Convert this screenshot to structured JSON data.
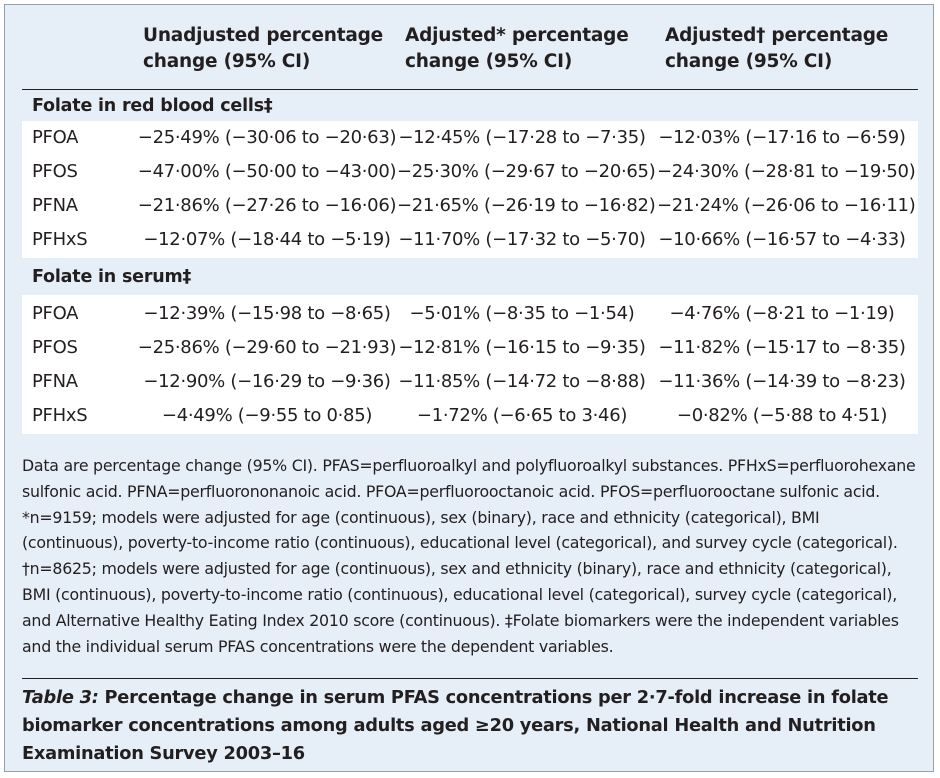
{
  "header": {
    "col1": "Unadjusted percentage\nchange (95% CI)",
    "col2": "Adjusted* percentage\nchange (95% CI)",
    "col3": "Adjusted† percentage\nchange (95% CI)"
  },
  "sections": [
    {
      "title": "Folate in red blood cells‡",
      "rows": [
        {
          "label": "PFOA",
          "unadjusted": "−25·49% (−30·06 to −20·63)",
          "adjusted1": "−12·45% (−17·28 to −7·35)",
          "adjusted2": "−12·03% (−17·16 to −6·59)"
        },
        {
          "label": "PFOS",
          "unadjusted": "−47·00% (−50·00 to −43·00)",
          "adjusted1": "−25·30% (−29·67 to −20·65)",
          "adjusted2": "−24·30% (−28·81 to −19·50)"
        },
        {
          "label": "PFNA",
          "unadjusted": "−21·86% (−27·26 to −16·06)",
          "adjusted1": "−21·65% (−26·19 to −16·82)",
          "adjusted2": "−21·24% (−26·06 to −16·11)"
        },
        {
          "label": "PFHxS",
          "unadjusted": "−12·07% (−18·44 to −5·19)",
          "adjusted1": "−11·70% (−17·32 to −5·70)",
          "adjusted2": "−10·66% (−16·57 to −4·33)"
        }
      ]
    },
    {
      "title": "Folate in serum‡",
      "rows": [
        {
          "label": "PFOA",
          "unadjusted": "−12·39% (−15·98 to −8·65)",
          "adjusted1": "−5·01% (−8·35 to −1·54)",
          "adjusted2": "−4·76% (−8·21 to −1·19)"
        },
        {
          "label": "PFOS",
          "unadjusted": "−25·86% (−29·60 to −21·93)",
          "adjusted1": "−12·81% (−16·15 to −9·35)",
          "adjusted2": "−11·82% (−15·17 to −8·35)"
        },
        {
          "label": "PFNA",
          "unadjusted": "−12·90% (−16·29 to −9·36)",
          "adjusted1": "−11·85% (−14·72 to −8·88)",
          "adjusted2": "−11·36% (−14·39 to −8·23)"
        },
        {
          "label": "PFHxS",
          "unadjusted": "−4·49% (−9·55 to 0·85)",
          "adjusted1": "−1·72% (−6·65 to 3·46)",
          "adjusted2": "−0·82% (−5·88 to 4·51)"
        }
      ]
    }
  ],
  "notes": "Data are percentage change (95% CI). PFAS=perfluoroalkyl and polyfluoroalkyl substances. PFHxS=perfluorohexane sulfonic acid. PFNA=perfluorononanoic acid. PFOA=perfluorooctanoic acid. PFOS=perfluorooctane sulfonic acid. *n=9159; models were adjusted for age (continuous), sex (binary), race and ethnicity (categorical), BMI (continuous), poverty-to-income ratio (continuous), educational level (categorical), and survey cycle (categorical). †n=8625; models were adjusted for age (continuous), sex and ethnicity (binary), race and ethnicity (categorical), BMI (continuous), poverty-to-income ratio (continuous), educational level (categorical), survey cycle (categorical), and Alternative Healthy Eating Index 2010 score (continuous). ‡Folate biomarkers were the independent variables and the individual serum PFAS concentrations were the dependent variables.",
  "caption": {
    "label": "Table 3:",
    "text": " Percentage change in serum PFAS concentrations per 2·7-fold increase in folate biomarker concentrations among adults aged ≥20 years, National Health and Nutrition Examination Survey 2003–16"
  }
}
